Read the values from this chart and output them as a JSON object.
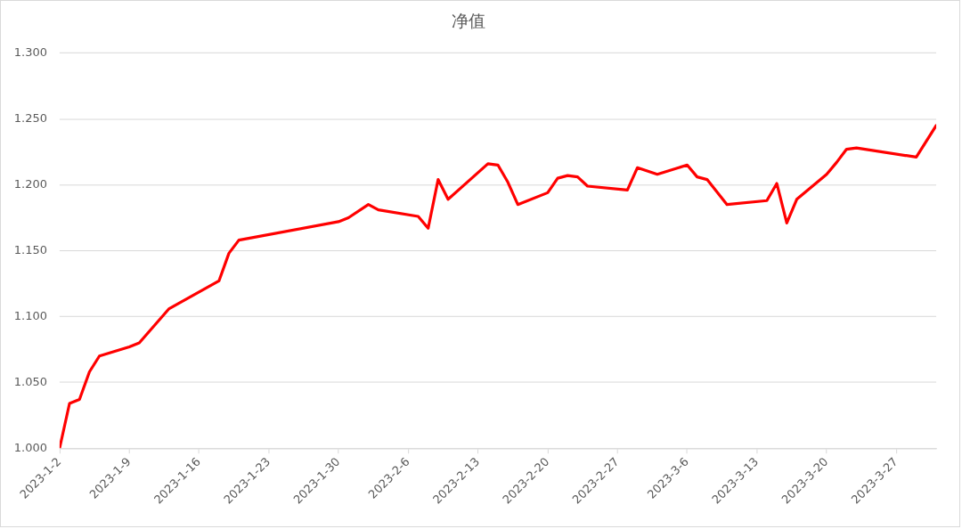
{
  "chart_data": {
    "type": "line",
    "title": "净值",
    "x": [
      "2023-01-02",
      "2023-01-03",
      "2023-01-04",
      "2023-01-05",
      "2023-01-06",
      "2023-01-09",
      "2023-01-10",
      "2023-01-13",
      "2023-01-18",
      "2023-01-19",
      "2023-01-20",
      "2023-01-30",
      "2023-01-31",
      "2023-02-02",
      "2023-02-03",
      "2023-02-07",
      "2023-02-08",
      "2023-02-09",
      "2023-02-10",
      "2023-02-14",
      "2023-02-15",
      "2023-02-16",
      "2023-02-17",
      "2023-02-20",
      "2023-02-21",
      "2023-02-22",
      "2023-02-23",
      "2023-02-24",
      "2023-02-28",
      "2023-03-01",
      "2023-03-03",
      "2023-03-06",
      "2023-03-07",
      "2023-03-08",
      "2023-03-10",
      "2023-03-14",
      "2023-03-15",
      "2023-03-16",
      "2023-03-17",
      "2023-03-20",
      "2023-03-21",
      "2023-03-22",
      "2023-03-23",
      "2023-03-29",
      "2023-03-31"
    ],
    "values": [
      1.0,
      1.034,
      1.037,
      1.058,
      1.07,
      1.077,
      1.08,
      1.106,
      1.127,
      1.148,
      1.158,
      1.172,
      1.175,
      1.185,
      1.181,
      1.176,
      1.167,
      1.204,
      1.189,
      1.216,
      1.215,
      1.202,
      1.185,
      1.194,
      1.205,
      1.207,
      1.206,
      1.199,
      1.196,
      1.213,
      1.208,
      1.215,
      1.206,
      1.204,
      1.185,
      1.188,
      1.201,
      1.171,
      1.189,
      1.208,
      1.217,
      1.227,
      1.228,
      1.221,
      1.245
    ],
    "color": "#ff0000",
    "xlim": [
      "2023-01-02",
      "2023-03-31"
    ],
    "xticks": [
      {
        "value": "2023-01-02",
        "label": "2023-1-2"
      },
      {
        "value": "2023-01-09",
        "label": "2023-1-9"
      },
      {
        "value": "2023-01-16",
        "label": "2023-1-16"
      },
      {
        "value": "2023-01-23",
        "label": "2023-1-23"
      },
      {
        "value": "2023-01-30",
        "label": "2023-1-30"
      },
      {
        "value": "2023-02-06",
        "label": "2023-2-6"
      },
      {
        "value": "2023-02-13",
        "label": "2023-2-13"
      },
      {
        "value": "2023-02-20",
        "label": "2023-2-20"
      },
      {
        "value": "2023-02-27",
        "label": "2023-2-27"
      },
      {
        "value": "2023-03-06",
        "label": "2023-3-6"
      },
      {
        "value": "2023-03-13",
        "label": "2023-3-13"
      },
      {
        "value": "2023-03-20",
        "label": "2023-3-20"
      },
      {
        "value": "2023-03-27",
        "label": "2023-3-27"
      }
    ],
    "ylim": [
      1.0,
      1.3
    ],
    "yticks": [
      {
        "value": 1.0,
        "label": "1.000"
      },
      {
        "value": 1.05,
        "label": "1.050"
      },
      {
        "value": 1.1,
        "label": "1.100"
      },
      {
        "value": 1.15,
        "label": "1.150"
      },
      {
        "value": 1.2,
        "label": "1.200"
      },
      {
        "value": 1.25,
        "label": "1.250"
      },
      {
        "value": 1.3,
        "label": "1.300"
      }
    ],
    "grid": "y"
  }
}
